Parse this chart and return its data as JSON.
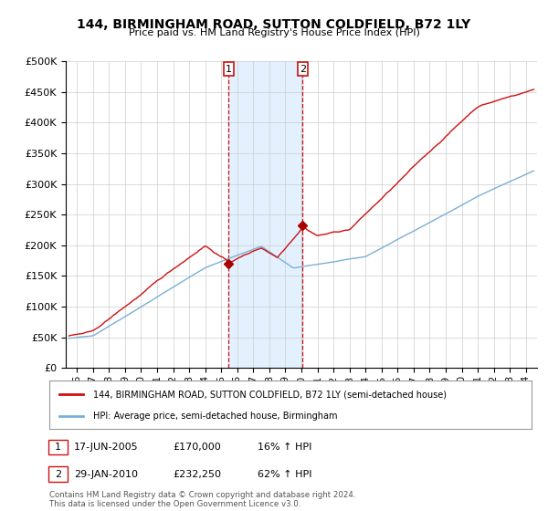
{
  "title": "144, BIRMINGHAM ROAD, SUTTON COLDFIELD, B72 1LY",
  "subtitle": "Price paid vs. HM Land Registry's House Price Index (HPI)",
  "legend_line1": "144, BIRMINGHAM ROAD, SUTTON COLDFIELD, B72 1LY (semi-detached house)",
  "legend_line2": "HPI: Average price, semi-detached house, Birmingham",
  "footnote": "Contains HM Land Registry data © Crown copyright and database right 2024.\nThis data is licensed under the Open Government Licence v3.0.",
  "sale1_label": "1",
  "sale1_date": "17-JUN-2005",
  "sale1_price": "£170,000",
  "sale1_hpi": "16% ↑ HPI",
  "sale1_x": 2005.46,
  "sale1_y": 170000,
  "sale2_label": "2",
  "sale2_date": "29-JAN-2010",
  "sale2_price": "£232,250",
  "sale2_hpi": "62% ↑ HPI",
  "sale2_x": 2010.08,
  "sale2_y": 232250,
  "hpi_color": "#7bafd4",
  "price_color": "#cc1111",
  "marker_color": "#aa0000",
  "shading_color": "#ddeeff",
  "background_color": "#ffffff",
  "grid_color": "#cccccc",
  "ylim": [
    0,
    500000
  ],
  "yticks": [
    0,
    50000,
    100000,
    150000,
    200000,
    250000,
    300000,
    350000,
    400000,
    450000,
    500000
  ],
  "xlim_start": 1995.3,
  "xlim_end": 2024.7
}
